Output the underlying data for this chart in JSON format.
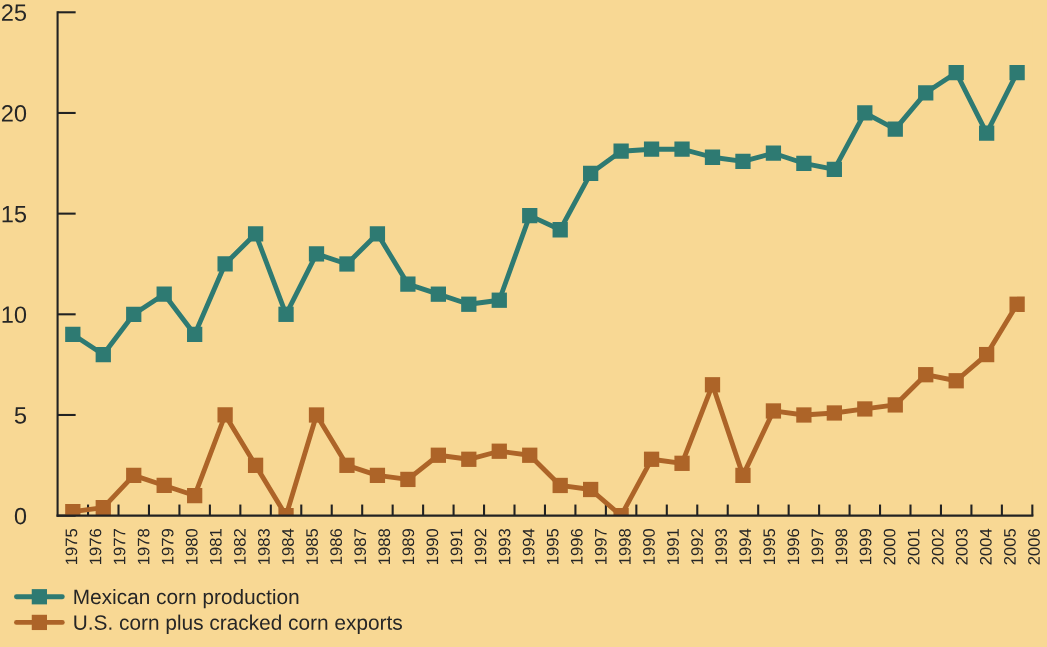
{
  "chart_data": {
    "type": "line",
    "marker": "square",
    "line_style": "solid",
    "legend": "bottom left",
    "grid": false,
    "categories": [
      null,
      null,
      null,
      null,
      null,
      null,
      null,
      null,
      null,
      null,
      null,
      null,
      null,
      null,
      null,
      null,
      null,
      null,
      null,
      null,
      null,
      null,
      null,
      null,
      null,
      null,
      null,
      null,
      null,
      null,
      null,
      null
    ],
    "series": [
      {
        "name": "Mexican corn production",
        "color": "#2e7a72",
        "values": [
          9,
          8,
          10,
          11,
          9,
          12.5,
          14,
          10,
          13,
          12.5,
          14,
          11.5,
          11,
          10.5,
          10.7,
          14.9,
          14.2,
          17.0,
          18.1,
          18.2,
          18.2,
          17.8,
          17.6,
          18.0,
          17.5,
          17.2,
          20.0,
          19.2,
          21.0,
          22.0,
          19.0,
          22.0
        ]
      },
      {
        "name": "U.S. corn plus cracked corn exports",
        "color": "#ad6428",
        "values": [
          0.2,
          0.4,
          2.0,
          1.5,
          1.0,
          5.0,
          2.5,
          0,
          5.0,
          2.5,
          2.0,
          1.8,
          3.0,
          2.8,
          3.2,
          3.0,
          1.5,
          1.3,
          0,
          2.8,
          2.6,
          6.5,
          2.0,
          5.2,
          5.0,
          5.1,
          5.3,
          5.5,
          7.0,
          6.7,
          8.0,
          10.5
        ]
      }
    ],
    "ylim": [
      0,
      25
    ],
    "yticks": [
      0,
      5,
      10,
      15,
      20,
      25
    ],
    "annotations": [
      "1975",
      "1976",
      "1977",
      "1978",
      "1979",
      "1980",
      "1981",
      "1982",
      "1983",
      "1984",
      "1985",
      "1986",
      "1987",
      "1988",
      "1989",
      "1990",
      "1991",
      "1992",
      "1993",
      "1994",
      "1995",
      "1996",
      "1997",
      "1998",
      "1990",
      "1991",
      "1992",
      "1993",
      "1994",
      "1995",
      "1996",
      "1997",
      "1998",
      "1999",
      "2000",
      "2001",
      "2002",
      "2003",
      "2004",
      "2005",
      "2006"
    ]
  }
}
